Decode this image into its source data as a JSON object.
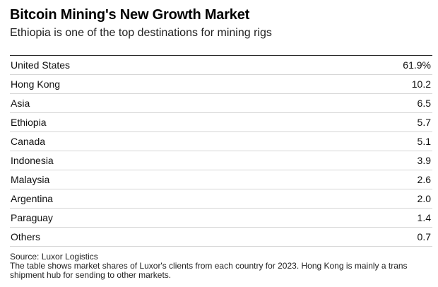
{
  "header": {
    "title": "Bitcoin Mining's New Growth Market",
    "subtitle": "Ethiopia is one of the top destinations for mining rigs"
  },
  "chart_data": {
    "type": "table",
    "title": "Bitcoin Mining's New Growth Market",
    "subtitle": "Ethiopia is one of the top destinations for mining rigs",
    "rows": [
      {
        "country": "United States",
        "share": "61.9%"
      },
      {
        "country": "Hong Kong",
        "share": "10.2"
      },
      {
        "country": "Asia",
        "share": "6.5"
      },
      {
        "country": "Ethiopia",
        "share": "5.7"
      },
      {
        "country": "Canada",
        "share": "5.1"
      },
      {
        "country": "Indonesia",
        "share": "3.9"
      },
      {
        "country": "Malaysia",
        "share": "2.6"
      },
      {
        "country": "Argentina",
        "share": "2.0"
      },
      {
        "country": "Paraguay",
        "share": "1.4"
      },
      {
        "country": "Others",
        "share": "0.7"
      }
    ]
  },
  "footer": {
    "source": "Source: Luxor Logistics",
    "note": "The table shows market shares of Luxor's clients from each country for 2023. Hong Kong is mainly a trans shipment hub for sending to other markets."
  }
}
